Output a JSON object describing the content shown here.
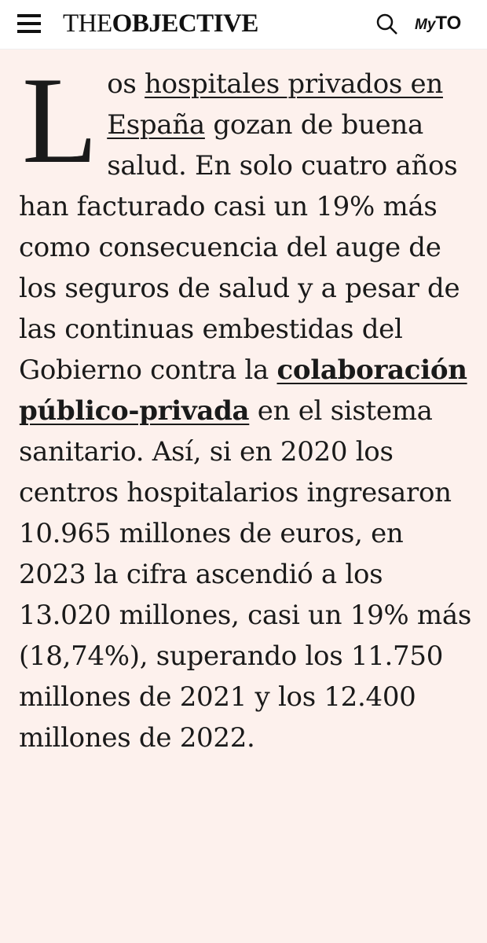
{
  "header": {
    "logo_prefix": "THE",
    "logo_main": "OBJECTIVE",
    "account_prefix": "My",
    "account_main": "TO"
  },
  "article": {
    "drop_cap": "L",
    "text_1": "os ",
    "link_1": "hospitales privados en España",
    "text_2": " gozan de buena salud. En solo cuatro años han facturado casi un 19% más como consecuencia del auge de los seguros de salud y a pesar de las continuas embestidas del Gobierno contra la ",
    "link_2": "colaboración público-privada",
    "text_3": " en el sistema sanitario. Así, si en 2020 los centros hospitalarios ingresaron 10.965 millones de euros, en 2023 la cifra ascendió a los 13.020 millones, casi un 19% más (18,74%), superando los 11.750 millones de 2021 y los 12.400 millones de 2022."
  }
}
